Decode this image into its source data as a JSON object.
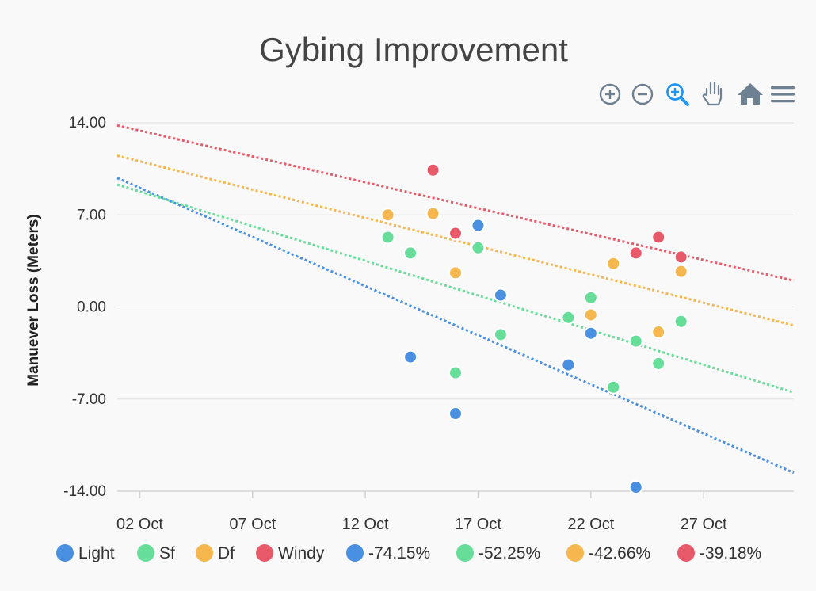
{
  "chart_data": {
    "type": "scatter",
    "title": "Gybing Improvement",
    "xlabel": "",
    "ylabel": "Manuever Loss (Meters)",
    "x_tick_labels": [
      "02 Oct",
      "07 Oct",
      "12 Oct",
      "17 Oct",
      "22 Oct",
      "27 Oct"
    ],
    "x_ticks": [
      "2023-10-02",
      "2023-10-07",
      "2023-10-12",
      "2023-10-17",
      "2023-10-22",
      "2023-10-27"
    ],
    "xlim": [
      "2023-10-01",
      "2023-10-31"
    ],
    "y_tick_labels": [
      "14.00",
      "7.00",
      "0.00",
      "-7.00",
      "-14.00"
    ],
    "ylim": [
      -14,
      14
    ],
    "grid": true,
    "legend_position": "bottom",
    "series": [
      {
        "name": "Light",
        "color": "#4a90e2",
        "points": [
          {
            "x": "2023-10-14",
            "y": -3.8
          },
          {
            "x": "2023-10-16",
            "y": -8.1
          },
          {
            "x": "2023-10-17",
            "y": 6.2
          },
          {
            "x": "2023-10-18",
            "y": 0.9
          },
          {
            "x": "2023-10-21",
            "y": -4.4
          },
          {
            "x": "2023-10-22",
            "y": -2.0
          },
          {
            "x": "2023-10-24",
            "y": -13.7
          }
        ]
      },
      {
        "name": "Sf",
        "color": "#66dd99",
        "points": [
          {
            "x": "2023-10-13",
            "y": 5.3
          },
          {
            "x": "2023-10-14",
            "y": 4.1
          },
          {
            "x": "2023-10-16",
            "y": -5.0
          },
          {
            "x": "2023-10-17",
            "y": 4.5
          },
          {
            "x": "2023-10-18",
            "y": -2.1
          },
          {
            "x": "2023-10-21",
            "y": -0.8
          },
          {
            "x": "2023-10-22",
            "y": 0.7
          },
          {
            "x": "2023-10-23",
            "y": -6.1
          },
          {
            "x": "2023-10-24",
            "y": -2.6
          },
          {
            "x": "2023-10-25",
            "y": -4.3
          },
          {
            "x": "2023-10-26",
            "y": -1.1
          }
        ]
      },
      {
        "name": "Df",
        "color": "#f5b74e",
        "points": [
          {
            "x": "2023-10-13",
            "y": 7.0
          },
          {
            "x": "2023-10-15",
            "y": 7.1
          },
          {
            "x": "2023-10-16",
            "y": 2.6
          },
          {
            "x": "2023-10-22",
            "y": -0.6
          },
          {
            "x": "2023-10-23",
            "y": 3.3
          },
          {
            "x": "2023-10-25",
            "y": -1.9
          },
          {
            "x": "2023-10-26",
            "y": 2.7
          }
        ]
      },
      {
        "name": "Windy",
        "color": "#e85a6a",
        "points": [
          {
            "x": "2023-10-15",
            "y": 10.4
          },
          {
            "x": "2023-10-16",
            "y": 5.6
          },
          {
            "x": "2023-10-24",
            "y": 4.1
          },
          {
            "x": "2023-10-25",
            "y": 5.3
          },
          {
            "x": "2023-10-26",
            "y": 3.8
          }
        ]
      }
    ],
    "trendlines": [
      {
        "name": "-74.15%",
        "color": "#4a90e2",
        "from": {
          "x": "2023-10-01",
          "y": 9.8
        },
        "to": {
          "x": "2023-10-31",
          "y": -12.6
        }
      },
      {
        "name": "-52.25%",
        "color": "#66dd99",
        "from": {
          "x": "2023-10-01",
          "y": 9.3
        },
        "to": {
          "x": "2023-10-31",
          "y": -6.5
        }
      },
      {
        "name": "-42.66%",
        "color": "#f5b74e",
        "from": {
          "x": "2023-10-01",
          "y": 11.5
        },
        "to": {
          "x": "2023-10-31",
          "y": -1.4
        }
      },
      {
        "name": "-39.18%",
        "color": "#e85a6a",
        "from": {
          "x": "2023-10-01",
          "y": 13.8
        },
        "to": {
          "x": "2023-10-31",
          "y": 2.0
        }
      }
    ]
  },
  "toolbar": {
    "icons": [
      "zoom-in-icon",
      "zoom-out-icon",
      "selection-zoom-icon",
      "pan-hand-icon",
      "home-reset-icon",
      "menu-icon"
    ],
    "active_color": "#2196f3",
    "inactive_color": "#6e8192"
  }
}
